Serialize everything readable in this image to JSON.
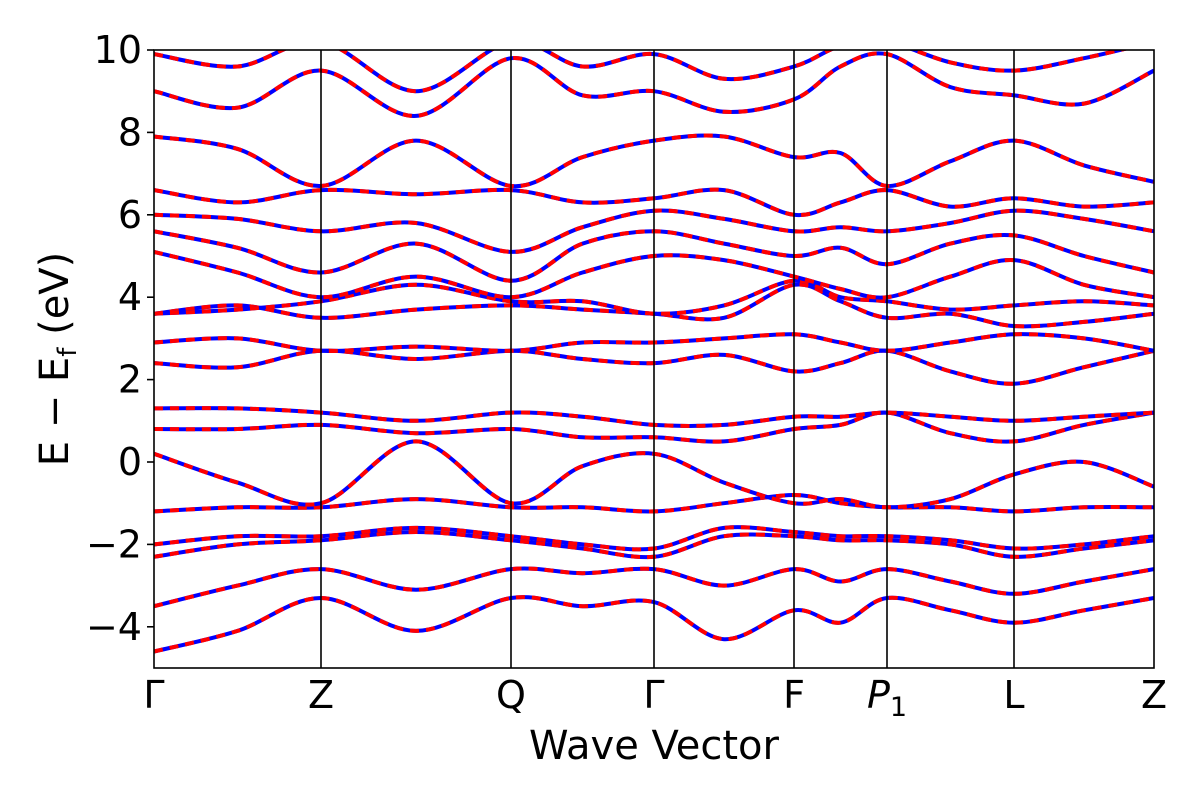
{
  "chart_data": {
    "type": "line",
    "title": "",
    "xlabel": "Wave Vector",
    "ylabel_main": "E − E",
    "ylabel_sub": "f",
    "ylabel_unit": " (eV)",
    "ylim": [
      -5,
      10
    ],
    "yticks": [
      {
        "value": -4,
        "label": "−4"
      },
      {
        "value": -2,
        "label": "−2"
      },
      {
        "value": 0,
        "label": "0"
      },
      {
        "value": 2,
        "label": "2"
      },
      {
        "value": 4,
        "label": "4"
      },
      {
        "value": 6,
        "label": "6"
      },
      {
        "value": 8,
        "label": "8"
      },
      {
        "value": 10,
        "label": "10"
      }
    ],
    "xlim": [
      0,
      1
    ],
    "kpoints": [
      {
        "x": 0.0,
        "label": "Γ",
        "sub": ""
      },
      {
        "x": 0.167,
        "label": "Z",
        "sub": ""
      },
      {
        "x": 0.357,
        "label": "Q",
        "sub": ""
      },
      {
        "x": 0.5,
        "label": "Γ",
        "sub": ""
      },
      {
        "x": 0.64,
        "label": "F",
        "sub": ""
      },
      {
        "x": 0.733,
        "label": "P",
        "sub": "1"
      },
      {
        "x": 0.86,
        "label": "L",
        "sub": ""
      },
      {
        "x": 1.0,
        "label": "Z",
        "sub": ""
      }
    ],
    "series_styles": [
      {
        "color": "#0000ff",
        "dash": ""
      },
      {
        "color": "#ff0000",
        "dash": "9 7"
      }
    ],
    "bands": [
      {
        "x": [
          0,
          0.0835,
          0.167,
          0.262,
          0.357,
          0.4285,
          0.5,
          0.57,
          0.64,
          0.6865,
          0.733,
          0.7965,
          0.86,
          0.93,
          1.0
        ],
        "y": [
          -4.6,
          -4.1,
          -3.3,
          -4.1,
          -3.3,
          -3.5,
          -3.4,
          -4.3,
          -3.6,
          -3.9,
          -3.3,
          -3.6,
          -3.9,
          -3.6,
          -3.3
        ]
      },
      {
        "x": [
          0,
          0.0835,
          0.167,
          0.262,
          0.357,
          0.4285,
          0.5,
          0.57,
          0.64,
          0.6865,
          0.733,
          0.7965,
          0.86,
          0.93,
          1.0
        ],
        "y": [
          -3.5,
          -3.0,
          -2.6,
          -3.1,
          -2.6,
          -2.7,
          -2.6,
          -3.0,
          -2.6,
          -2.9,
          -2.6,
          -2.9,
          -3.2,
          -2.9,
          -2.6
        ]
      },
      {
        "x": [
          0,
          0.0835,
          0.167,
          0.262,
          0.357,
          0.4285,
          0.5,
          0.57,
          0.64,
          0.6865,
          0.733,
          0.7965,
          0.86,
          0.93,
          1.0
        ],
        "y": [
          -2.3,
          -2.0,
          -1.9,
          -1.7,
          -1.9,
          -2.1,
          -2.3,
          -1.8,
          -1.8,
          -1.9,
          -1.9,
          -2.0,
          -2.3,
          -2.1,
          -1.9
        ]
      },
      {
        "x": [
          0,
          0.0835,
          0.167,
          0.262,
          0.357,
          0.4285,
          0.5,
          0.57,
          0.64,
          0.6865,
          0.733,
          0.7965,
          0.86,
          0.93,
          1.0
        ],
        "y": [
          -2.0,
          -1.8,
          -1.8,
          -1.6,
          -1.8,
          -2.0,
          -2.1,
          -1.6,
          -1.7,
          -1.8,
          -1.8,
          -1.9,
          -2.1,
          -2.0,
          -1.8
        ]
      },
      {
        "x": [
          0,
          0.0835,
          0.167,
          0.262,
          0.357,
          0.4285,
          0.5,
          0.57,
          0.64,
          0.6865,
          0.733,
          0.7965,
          0.86,
          0.93,
          1.0
        ],
        "y": [
          -1.2,
          -1.1,
          -1.1,
          -0.9,
          -1.1,
          -1.1,
          -1.2,
          -1.0,
          -0.8,
          -1.0,
          -1.1,
          -1.1,
          -1.2,
          -1.1,
          -1.1
        ]
      },
      {
        "x": [
          0,
          0.0835,
          0.167,
          0.262,
          0.357,
          0.4285,
          0.5,
          0.57,
          0.64,
          0.6865,
          0.733,
          0.7965,
          0.86,
          0.93,
          1.0
        ],
        "y": [
          0.2,
          -0.5,
          -1.0,
          0.5,
          -1.0,
          -0.1,
          0.2,
          -0.5,
          -1.0,
          -0.9,
          -1.1,
          -0.9,
          -0.3,
          0.0,
          -0.6
        ]
      },
      {
        "x": [
          0,
          0.0835,
          0.167,
          0.262,
          0.357,
          0.4285,
          0.5,
          0.57,
          0.64,
          0.6865,
          0.733,
          0.7965,
          0.86,
          0.93,
          1.0
        ],
        "y": [
          0.8,
          0.8,
          0.9,
          0.7,
          0.8,
          0.6,
          0.6,
          0.5,
          0.8,
          0.9,
          1.2,
          0.7,
          0.5,
          0.9,
          1.2
        ]
      },
      {
        "x": [
          0,
          0.0835,
          0.167,
          0.262,
          0.357,
          0.4285,
          0.5,
          0.57,
          0.64,
          0.6865,
          0.733,
          0.7965,
          0.86,
          0.93,
          1.0
        ],
        "y": [
          1.3,
          1.3,
          1.2,
          1.0,
          1.2,
          1.1,
          0.9,
          0.9,
          1.1,
          1.1,
          1.2,
          1.1,
          1.0,
          1.1,
          1.2
        ]
      },
      {
        "x": [
          0,
          0.0835,
          0.167,
          0.262,
          0.357,
          0.4285,
          0.5,
          0.57,
          0.64,
          0.6865,
          0.733,
          0.7965,
          0.86,
          0.93,
          1.0
        ],
        "y": [
          2.4,
          2.3,
          2.7,
          2.5,
          2.7,
          2.5,
          2.4,
          2.6,
          2.2,
          2.4,
          2.7,
          2.2,
          1.9,
          2.3,
          2.7
        ]
      },
      {
        "x": [
          0,
          0.0835,
          0.167,
          0.262,
          0.357,
          0.4285,
          0.5,
          0.57,
          0.64,
          0.6865,
          0.733,
          0.7965,
          0.86,
          0.93,
          1.0
        ],
        "y": [
          2.9,
          3.0,
          2.7,
          2.8,
          2.7,
          2.9,
          2.9,
          3.0,
          3.1,
          2.9,
          2.7,
          2.9,
          3.1,
          3.0,
          2.7
        ]
      },
      {
        "x": [
          0,
          0.0835,
          0.167,
          0.262,
          0.357,
          0.4285,
          0.5,
          0.57,
          0.64,
          0.6865,
          0.733,
          0.7965,
          0.86,
          0.93,
          1.0
        ],
        "y": [
          3.6,
          3.8,
          3.5,
          3.7,
          3.8,
          3.7,
          3.6,
          3.5,
          4.3,
          3.9,
          3.5,
          3.6,
          3.3,
          3.4,
          3.6
        ]
      },
      {
        "x": [
          0,
          0.0835,
          0.167,
          0.262,
          0.357,
          0.4285,
          0.5,
          0.57,
          0.64,
          0.6865,
          0.733,
          0.7965,
          0.86,
          0.93,
          1.0
        ],
        "y": [
          3.6,
          3.7,
          3.9,
          4.3,
          3.9,
          3.9,
          3.6,
          3.8,
          4.4,
          4.0,
          3.9,
          3.7,
          3.8,
          3.9,
          3.8
        ]
      },
      {
        "x": [
          0,
          0.0835,
          0.167,
          0.262,
          0.357,
          0.4285,
          0.5,
          0.57,
          0.64,
          0.6865,
          0.733,
          0.7965,
          0.86,
          0.93,
          1.0
        ],
        "y": [
          5.1,
          4.6,
          4.0,
          4.5,
          4.0,
          4.6,
          5.0,
          4.9,
          4.5,
          4.2,
          4.0,
          4.5,
          4.9,
          4.3,
          4.0
        ]
      },
      {
        "x": [
          0,
          0.0835,
          0.167,
          0.262,
          0.357,
          0.4285,
          0.5,
          0.57,
          0.64,
          0.6865,
          0.733,
          0.7965,
          0.86,
          0.93,
          1.0
        ],
        "y": [
          5.6,
          5.2,
          4.6,
          5.3,
          4.4,
          5.3,
          5.6,
          5.3,
          5.0,
          5.2,
          4.8,
          5.3,
          5.5,
          5.0,
          4.6
        ]
      },
      {
        "x": [
          0,
          0.0835,
          0.167,
          0.262,
          0.357,
          0.4285,
          0.5,
          0.57,
          0.64,
          0.6865,
          0.733,
          0.7965,
          0.86,
          0.93,
          1.0
        ],
        "y": [
          6.0,
          5.9,
          5.6,
          5.8,
          5.1,
          5.7,
          6.1,
          5.9,
          5.6,
          5.7,
          5.6,
          5.8,
          6.1,
          5.9,
          5.6
        ]
      },
      {
        "x": [
          0,
          0.0835,
          0.167,
          0.262,
          0.357,
          0.4285,
          0.5,
          0.57,
          0.64,
          0.6865,
          0.733,
          0.7965,
          0.86,
          0.93,
          1.0
        ],
        "y": [
          6.6,
          6.3,
          6.6,
          6.5,
          6.6,
          6.3,
          6.4,
          6.6,
          6.0,
          6.3,
          6.6,
          6.2,
          6.4,
          6.2,
          6.3
        ]
      },
      {
        "x": [
          0,
          0.0835,
          0.167,
          0.262,
          0.357,
          0.4285,
          0.5,
          0.57,
          0.64,
          0.6865,
          0.733,
          0.7965,
          0.86,
          0.93,
          1.0
        ],
        "y": [
          7.9,
          7.6,
          6.7,
          7.8,
          6.7,
          7.4,
          7.8,
          7.9,
          7.4,
          7.5,
          6.7,
          7.3,
          7.8,
          7.2,
          6.8
        ]
      },
      {
        "x": [
          0,
          0.0835,
          0.167,
          0.262,
          0.357,
          0.4285,
          0.5,
          0.57,
          0.64,
          0.6865,
          0.733,
          0.7965,
          0.86,
          0.93,
          1.0
        ],
        "y": [
          9.0,
          8.6,
          9.5,
          8.4,
          9.8,
          8.9,
          9.0,
          8.5,
          8.8,
          9.6,
          9.9,
          9.1,
          8.9,
          8.7,
          9.5
        ]
      },
      {
        "x": [
          0,
          0.0835,
          0.167,
          0.262,
          0.357,
          0.4285,
          0.5,
          0.57,
          0.64,
          0.6865,
          0.733,
          0.7965,
          0.86,
          0.93,
          1.0
        ],
        "y": [
          9.9,
          9.6,
          10.2,
          9.0,
          10.2,
          9.6,
          9.9,
          9.3,
          9.6,
          10.1,
          10.2,
          9.7,
          9.5,
          9.8,
          10.2
        ]
      }
    ]
  }
}
